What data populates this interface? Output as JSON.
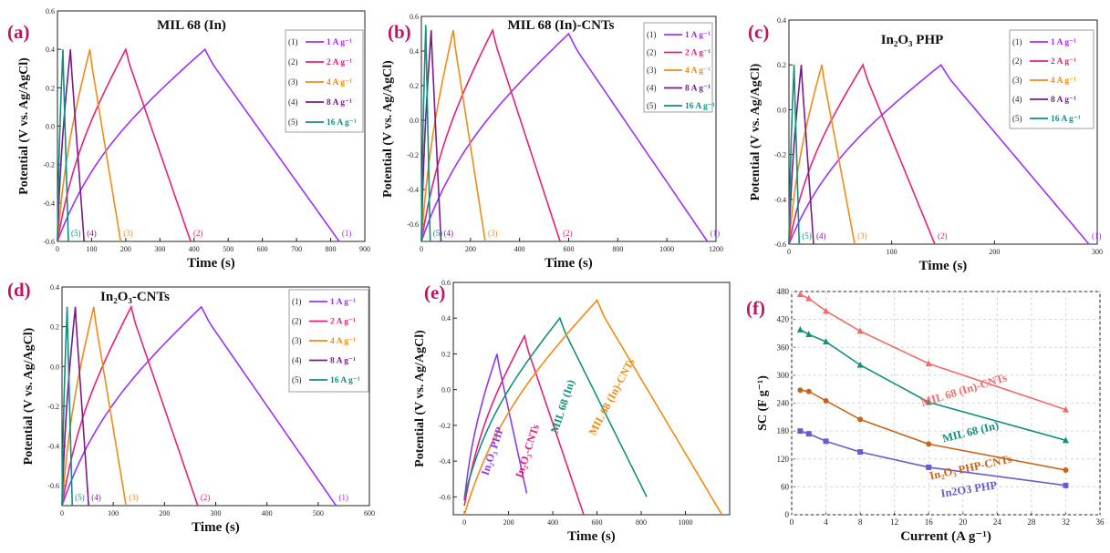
{
  "colors": {
    "c1": "#9b30ff",
    "c2": "#e6207a",
    "c3": "#f28a16",
    "c4": "#7a1a8c",
    "c5": "#0f8f80",
    "panel_letter": "#c01464",
    "in2o3_php": "#8b3be6",
    "in2o3_cnts": "#e6207a",
    "mil68": "#138f7c",
    "mil68_cnts": "#f28a16",
    "f_mil68_cnts": "#f06c6a",
    "f_mil68": "#138f7c",
    "f_in2o3_php_cnts": "#c8641a",
    "f_in2o3_php": "#6a5acd"
  },
  "chart_data": [
    {
      "panel": "(a)",
      "type": "line",
      "title": "MIL 68 (In)",
      "xlabel": "Time (s)",
      "ylabel": "Potential (V vs. Ag/AgCl)",
      "xlim": [
        0,
        900
      ],
      "ylim": [
        -0.6,
        0.6
      ],
      "xticks": [
        0,
        100,
        200,
        300,
        400,
        500,
        600,
        700,
        800,
        900
      ],
      "yticks": [
        -0.6,
        -0.4,
        -0.2,
        0.0,
        0.2,
        0.4,
        0.6
      ],
      "legend_position": "top-right",
      "series": [
        {
          "name": "1 A g⁻¹",
          "tag": "(1)",
          "color_key": "c1",
          "vmin": -0.6,
          "vmax": 0.4,
          "tpeak": 432,
          "tend": 825
        },
        {
          "name": "2 A g⁻¹",
          "tag": "(2)",
          "color_key": "c2",
          "vmin": -0.6,
          "vmax": 0.4,
          "tpeak": 200,
          "tend": 390
        },
        {
          "name": "4 A g⁻¹",
          "tag": "(3)",
          "color_key": "c3",
          "vmin": -0.6,
          "vmax": 0.4,
          "tpeak": 95,
          "tend": 185
        },
        {
          "name": "8 A g⁻¹",
          "tag": "(4)",
          "color_key": "c4",
          "vmin": -0.6,
          "vmax": 0.4,
          "tpeak": 38,
          "tend": 78
        },
        {
          "name": "16 A g⁻¹",
          "tag": "(5)",
          "color_key": "c5",
          "vmin": -0.6,
          "vmax": 0.4,
          "tpeak": 16,
          "tend": 32
        }
      ]
    },
    {
      "panel": "(b)",
      "type": "line",
      "title": "MIL 68 (In)-CNTs",
      "xlabel": "Time (s)",
      "ylabel": "Potential (V vs. Ag/AgCl)",
      "xlim": [
        0,
        1200
      ],
      "ylim": [
        -0.7,
        0.6
      ],
      "xticks": [
        0,
        200,
        400,
        600,
        800,
        1000,
        1200
      ],
      "yticks": [
        -0.6,
        -0.4,
        -0.2,
        0.0,
        0.2,
        0.4,
        0.6
      ],
      "legend_position": "top-right",
      "series": [
        {
          "name": "1 A g⁻¹",
          "tag": "(1)",
          "color_key": "c1",
          "vmin": -0.7,
          "vmax": 0.5,
          "tpeak": 600,
          "tend": 1165
        },
        {
          "name": "2 A g⁻¹",
          "tag": "(2)",
          "color_key": "c2",
          "vmin": -0.7,
          "vmax": 0.52,
          "tpeak": 290,
          "tend": 565
        },
        {
          "name": "4 A g⁻¹",
          "tag": "(3)",
          "color_key": "c3",
          "vmin": -0.7,
          "vmax": 0.52,
          "tpeak": 130,
          "tend": 260
        },
        {
          "name": "8 A g⁻¹",
          "tag": "(4)",
          "color_key": "c4",
          "vmin": -0.7,
          "vmax": 0.52,
          "tpeak": 40,
          "tend": 80
        },
        {
          "name": "16 A g⁻¹",
          "tag": "(5)",
          "color_key": "c5",
          "vmin": -0.7,
          "vmax": 0.55,
          "tpeak": 18,
          "tend": 36
        }
      ]
    },
    {
      "panel": "(c)",
      "type": "line",
      "title": "In₂O₃ PHP",
      "xlabel": "Time (s)",
      "ylabel": "Potential (V vs. Ag/AgCl)",
      "xlim": [
        0,
        300
      ],
      "ylim": [
        -0.6,
        0.4
      ],
      "xticks": [
        0,
        100,
        200,
        300
      ],
      "yticks": [
        -0.6,
        -0.4,
        -0.2,
        0.0,
        0.2,
        0.4
      ],
      "legend_position": "top-right",
      "series": [
        {
          "name": "1 A g⁻¹",
          "tag": "(1)",
          "color_key": "c1",
          "vmin": -0.6,
          "vmax": 0.2,
          "tpeak": 148,
          "tend": 292
        },
        {
          "name": "2 A g⁻¹",
          "tag": "(2)",
          "color_key": "c2",
          "vmin": -0.6,
          "vmax": 0.2,
          "tpeak": 72,
          "tend": 142
        },
        {
          "name": "4 A g⁻¹",
          "tag": "(3)",
          "color_key": "c3",
          "vmin": -0.6,
          "vmax": 0.2,
          "tpeak": 32,
          "tend": 64
        },
        {
          "name": "8 A g⁻¹",
          "tag": "(4)",
          "color_key": "c4",
          "vmin": -0.6,
          "vmax": 0.2,
          "tpeak": 12,
          "tend": 24
        },
        {
          "name": "16 A g⁻¹",
          "tag": "(5)",
          "color_key": "c5",
          "vmin": -0.6,
          "vmax": 0.2,
          "tpeak": 5,
          "tend": 10
        }
      ]
    },
    {
      "panel": "(d)",
      "type": "line",
      "title": "In₂O₃-CNTs",
      "xlabel": "Time (s)",
      "ylabel": "Potential (V vs. Ag/AgCl)",
      "xlim": [
        0,
        600
      ],
      "ylim": [
        -0.7,
        0.4
      ],
      "xticks": [
        0,
        100,
        200,
        300,
        400,
        500,
        600
      ],
      "yticks": [
        -0.6,
        -0.4,
        -0.2,
        0.0,
        0.2,
        0.4
      ],
      "legend_position": "top-right",
      "series": [
        {
          "name": "1 A g⁻¹",
          "tag": "(1)",
          "color_key": "c1",
          "vmin": -0.7,
          "vmax": 0.3,
          "tpeak": 272,
          "tend": 535
        },
        {
          "name": "2 A g⁻¹",
          "tag": "(2)",
          "color_key": "c2",
          "vmin": -0.7,
          "vmax": 0.3,
          "tpeak": 135,
          "tend": 265
        },
        {
          "name": "4 A g⁻¹",
          "tag": "(3)",
          "color_key": "c3",
          "vmin": -0.7,
          "vmax": 0.3,
          "tpeak": 62,
          "tend": 125
        },
        {
          "name": "8 A g⁻¹",
          "tag": "(4)",
          "color_key": "c4",
          "vmin": -0.7,
          "vmax": 0.3,
          "tpeak": 26,
          "tend": 52
        },
        {
          "name": "16 A g⁻¹",
          "tag": "(5)",
          "color_key": "c5",
          "vmin": -0.7,
          "vmax": 0.3,
          "tpeak": 10,
          "tend": 20
        }
      ]
    },
    {
      "panel": "(e)",
      "type": "line",
      "title": "",
      "xlabel": "Time (s)",
      "ylabel": "Potential (V vs. Ag/AgCl)",
      "xlim": [
        -50,
        1200
      ],
      "ylim": [
        -0.7,
        0.6
      ],
      "xticks": [
        0,
        200,
        400,
        600,
        800,
        1000
      ],
      "yticks": [
        -0.6,
        -0.4,
        -0.2,
        0.0,
        0.2,
        0.4,
        0.6
      ],
      "series": [
        {
          "name": "In₂O₃ PHP",
          "color_key": "in2o3_php",
          "vmin": -0.62,
          "vmax": 0.2,
          "vend": -0.58,
          "tpeak": 148,
          "tend": 282
        },
        {
          "name": "In₂O₃-CNTs",
          "color_key": "in2o3_cnts",
          "vmin": -0.65,
          "vmax": 0.3,
          "vend": -0.7,
          "tpeak": 272,
          "tend": 540
        },
        {
          "name": "MIL 68 (In)",
          "color_key": "mil68",
          "vmin": -0.6,
          "vmax": 0.4,
          "vend": -0.6,
          "tpeak": 432,
          "tend": 825
        },
        {
          "name": "MIL 68 (In)-CNTs",
          "color_key": "mil68_cnts",
          "vmin": -0.7,
          "vmax": 0.5,
          "vend": -0.7,
          "tpeak": 600,
          "tend": 1165
        }
      ]
    },
    {
      "panel": "(f)",
      "type": "line",
      "title": "",
      "xlabel": "Current (A g⁻¹)",
      "ylabel": "SC (F g⁻¹)",
      "xlim": [
        0,
        36
      ],
      "ylim": [
        0,
        480
      ],
      "xticks": [
        0,
        4,
        8,
        12,
        16,
        20,
        24,
        28,
        32,
        36
      ],
      "yticks": [
        0,
        60,
        120,
        180,
        240,
        300,
        360,
        420,
        480
      ],
      "grid": true,
      "x": [
        1,
        2,
        4,
        8,
        16,
        32
      ],
      "series": [
        {
          "name": "MIL 68 (In)-CNTs",
          "color_key": "f_mil68_cnts",
          "marker": "triangle",
          "values": [
            474,
            465,
            438,
            395,
            325,
            226
          ]
        },
        {
          "name": "MIL 68 (In)",
          "color_key": "f_mil68",
          "marker": "triangle",
          "values": [
            398,
            388,
            372,
            322,
            242,
            160
          ]
        },
        {
          "name": "In₂O₃ PHP-CNTs",
          "color_key": "f_in2o3_php_cnts",
          "marker": "circle",
          "values": [
            268,
            265,
            245,
            205,
            152,
            96
          ]
        },
        {
          "name": "In2O3 PHP",
          "color_key": "f_in2o3_php",
          "marker": "square",
          "values": [
            180,
            174,
            158,
            135,
            102,
            63
          ]
        }
      ]
    }
  ]
}
